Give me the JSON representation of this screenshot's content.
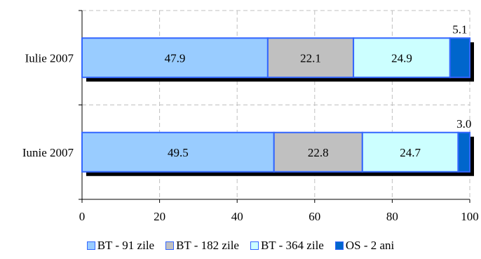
{
  "chart_data": {
    "type": "bar",
    "orientation": "horizontal",
    "stacked": true,
    "categories": [
      "Iulie 2007",
      "Iunie 2007"
    ],
    "series": [
      {
        "name": "BT - 91 zile",
        "values": [
          47.9,
          49.5
        ],
        "color": "#99ccff"
      },
      {
        "name": "BT - 182 zile",
        "values": [
          22.1,
          22.8
        ],
        "color": "#c0c0c0"
      },
      {
        "name": "BT - 364 zile",
        "values": [
          24.9,
          24.7
        ],
        "color": "#ccffff"
      },
      {
        "name": "OS - 2 ani",
        "values": [
          5.1,
          3.0
        ],
        "color": "#0066cc"
      }
    ],
    "xlim": [
      0,
      100
    ],
    "x_ticks": [
      "0",
      "20",
      "40",
      "60",
      "80",
      "100"
    ],
    "grid": true,
    "legend_position": "bottom",
    "border_color": "#3366ff",
    "shadow_color": "#000000"
  }
}
